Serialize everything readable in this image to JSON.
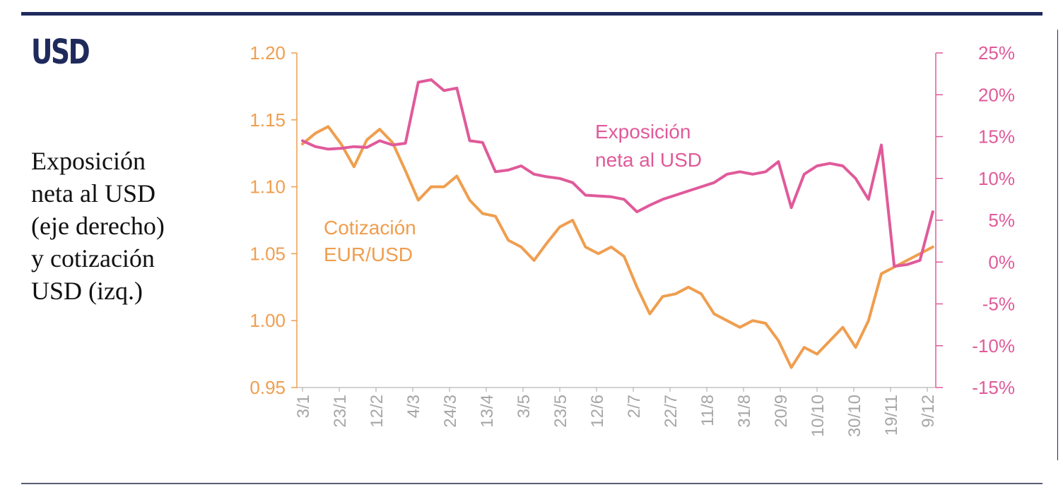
{
  "badge": "USD",
  "description": "Exposición neta al USD (eje derecho) y cotización USD (izq.)",
  "description_lines": [
    "Exposición",
    "neta al USD",
    "(eje derecho)",
    "y cotización",
    "USD (izq.)"
  ],
  "colors": {
    "navy": "#1f2a5c",
    "eur_usd": "#ef9e4f",
    "exposure": "#e05a9a",
    "ticks_x": "#a6a6a6"
  },
  "chart_data": {
    "type": "line",
    "title": "",
    "xlabel": "",
    "x_tick_labels": [
      "3/1",
      "23/1",
      "12/2",
      "4/3",
      "24/3",
      "13/4",
      "3/5",
      "23/5",
      "12/6",
      "2/7",
      "22/7",
      "11/8",
      "31/8",
      "20/9",
      "10/10",
      "30/10",
      "19/11",
      "9/12"
    ],
    "y_left": {
      "ticks": [
        "1.20",
        "1.15",
        "1.10",
        "1.05",
        "1.00",
        "0.95"
      ],
      "lim": [
        0.95,
        1.2
      ]
    },
    "y_right": {
      "ticks": [
        "25%",
        "20%",
        "15%",
        "10%",
        "5%",
        "0%",
        "-5%",
        "-10%",
        "-15%"
      ],
      "lim": [
        -15,
        25
      ],
      "unit": "%"
    },
    "annotations": [
      {
        "series": "eur_usd",
        "lines": [
          "Cotización",
          "EUR/USD"
        ]
      },
      {
        "series": "exposure",
        "lines": [
          "Exposición",
          "neta al USD"
        ]
      }
    ],
    "grid": false,
    "series": [
      {
        "name": "Cotización EUR/USD",
        "axis": "left",
        "color": "#ef9e4f",
        "x": [
          "2022-01-03",
          "2022-01-10",
          "2022-01-17",
          "2022-01-24",
          "2022-01-31",
          "2022-02-07",
          "2022-02-14",
          "2022-02-21",
          "2022-02-28",
          "2022-03-07",
          "2022-03-14",
          "2022-03-21",
          "2022-03-28",
          "2022-04-04",
          "2022-04-11",
          "2022-04-18",
          "2022-04-25",
          "2022-05-02",
          "2022-05-09",
          "2022-05-16",
          "2022-05-23",
          "2022-05-30",
          "2022-06-06",
          "2022-06-13",
          "2022-06-20",
          "2022-06-27",
          "2022-07-04",
          "2022-07-11",
          "2022-07-18",
          "2022-07-25",
          "2022-08-01",
          "2022-08-08",
          "2022-08-15",
          "2022-08-22",
          "2022-08-29",
          "2022-09-05",
          "2022-09-12",
          "2022-09-19",
          "2022-09-26",
          "2022-10-03",
          "2022-10-10",
          "2022-10-17",
          "2022-10-24",
          "2022-10-31",
          "2022-11-07",
          "2022-11-14",
          "2022-11-21",
          "2022-11-28",
          "2022-12-05",
          "2022-12-12"
        ],
        "values": [
          1.132,
          1.14,
          1.145,
          1.132,
          1.115,
          1.135,
          1.143,
          1.133,
          1.112,
          1.09,
          1.1,
          1.1,
          1.108,
          1.09,
          1.08,
          1.078,
          1.06,
          1.055,
          1.045,
          1.058,
          1.07,
          1.075,
          1.055,
          1.05,
          1.055,
          1.048,
          1.025,
          1.005,
          1.018,
          1.02,
          1.025,
          1.02,
          1.005,
          1.0,
          0.995,
          1.0,
          0.998,
          0.985,
          0.965,
          0.98,
          0.975,
          0.985,
          0.995,
          0.98,
          1.0,
          1.035,
          1.04,
          1.045,
          1.05,
          1.055
        ]
      },
      {
        "name": "Exposición neta al USD",
        "axis": "right",
        "color": "#e05a9a",
        "x": [
          "2022-01-03",
          "2022-01-10",
          "2022-01-17",
          "2022-01-24",
          "2022-01-31",
          "2022-02-07",
          "2022-02-14",
          "2022-02-21",
          "2022-02-28",
          "2022-03-07",
          "2022-03-14",
          "2022-03-21",
          "2022-03-28",
          "2022-04-04",
          "2022-04-11",
          "2022-04-18",
          "2022-04-25",
          "2022-05-02",
          "2022-05-09",
          "2022-05-16",
          "2022-05-23",
          "2022-05-30",
          "2022-06-06",
          "2022-06-13",
          "2022-06-20",
          "2022-06-27",
          "2022-07-04",
          "2022-07-11",
          "2022-07-18",
          "2022-07-25",
          "2022-08-01",
          "2022-08-08",
          "2022-08-15",
          "2022-08-22",
          "2022-08-29",
          "2022-09-05",
          "2022-09-12",
          "2022-09-19",
          "2022-09-26",
          "2022-10-03",
          "2022-10-10",
          "2022-10-17",
          "2022-10-24",
          "2022-10-31",
          "2022-11-07",
          "2022-11-14",
          "2022-11-21",
          "2022-11-28",
          "2022-12-05",
          "2022-12-12"
        ],
        "values": [
          14.5,
          13.8,
          13.5,
          13.6,
          13.8,
          13.7,
          14.5,
          14.0,
          14.2,
          21.5,
          21.8,
          20.5,
          20.8,
          14.5,
          14.3,
          10.8,
          11.0,
          11.5,
          10.5,
          10.2,
          10.0,
          9.5,
          8.0,
          7.9,
          7.8,
          7.5,
          6.0,
          6.8,
          7.5,
          8.0,
          8.5,
          9.0,
          9.5,
          10.5,
          10.8,
          10.5,
          10.8,
          12.0,
          6.5,
          10.5,
          11.5,
          11.8,
          11.5,
          10.0,
          7.5,
          14.0,
          -0.5,
          -0.3,
          0.2,
          6.0
        ]
      }
    ]
  }
}
